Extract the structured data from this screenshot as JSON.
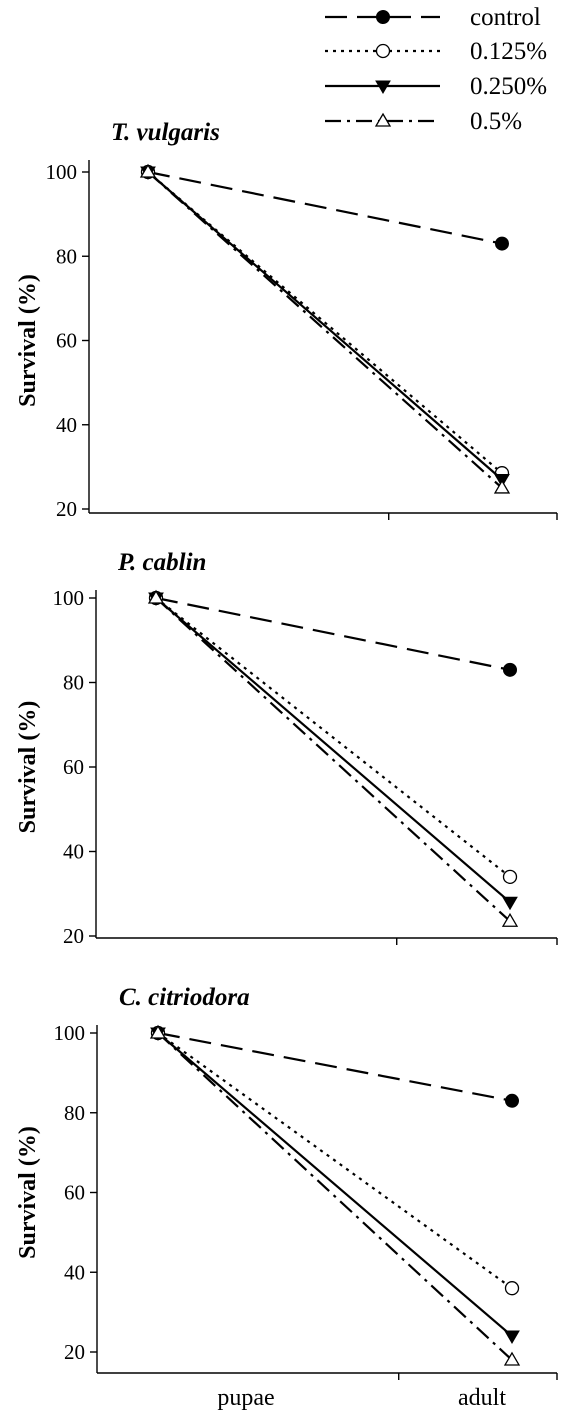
{
  "legend": [
    {
      "name": "control",
      "marker": "filled-circle",
      "dash": "dash"
    },
    {
      "name": "0.125%",
      "marker": "open-circle",
      "dash": "dot"
    },
    {
      "name": "0.250%",
      "marker": "filled-triangle-down",
      "dash": "solid"
    },
    {
      "name": "0.5%",
      "marker": "open-triangle-up",
      "dash": "dashdot"
    }
  ],
  "chart_data": [
    {
      "type": "line",
      "title": "T. vulgaris",
      "xlabel": "",
      "ylabel": "Survival (%)",
      "categories": [
        "pupae",
        "adult"
      ],
      "ylim": [
        20,
        100
      ],
      "yticks": [
        20,
        40,
        60,
        80,
        100
      ],
      "show_category_labels": false,
      "series": [
        {
          "name": "control",
          "values": [
            100,
            83
          ]
        },
        {
          "name": "0.125%",
          "values": [
            100,
            28.5
          ]
        },
        {
          "name": "0.250%",
          "values": [
            100,
            27
          ]
        },
        {
          "name": "0.5%",
          "values": [
            100,
            25
          ]
        }
      ]
    },
    {
      "type": "line",
      "title": "P. cablin",
      "xlabel": "",
      "ylabel": "Survival (%)",
      "categories": [
        "pupae",
        "adult"
      ],
      "ylim": [
        20,
        100
      ],
      "yticks": [
        20,
        40,
        60,
        80,
        100
      ],
      "show_category_labels": false,
      "series": [
        {
          "name": "control",
          "values": [
            100,
            83
          ]
        },
        {
          "name": "0.125%",
          "values": [
            100,
            34
          ]
        },
        {
          "name": "0.250%",
          "values": [
            100,
            28
          ]
        },
        {
          "name": "0.5%",
          "values": [
            100,
            23.5
          ]
        }
      ]
    },
    {
      "type": "line",
      "title": "C. citriodora",
      "xlabel": "",
      "ylabel": "Survival (%)",
      "categories": [
        "pupae",
        "adult"
      ],
      "ylim": [
        15,
        100
      ],
      "yticks": [
        20,
        40,
        60,
        80,
        100
      ],
      "show_category_labels": true,
      "series": [
        {
          "name": "control",
          "values": [
            100,
            83
          ]
        },
        {
          "name": "0.125%",
          "values": [
            100,
            36
          ]
        },
        {
          "name": "0.250%",
          "values": [
            100,
            24
          ]
        },
        {
          "name": "0.5%",
          "values": [
            100,
            18
          ]
        }
      ]
    }
  ]
}
